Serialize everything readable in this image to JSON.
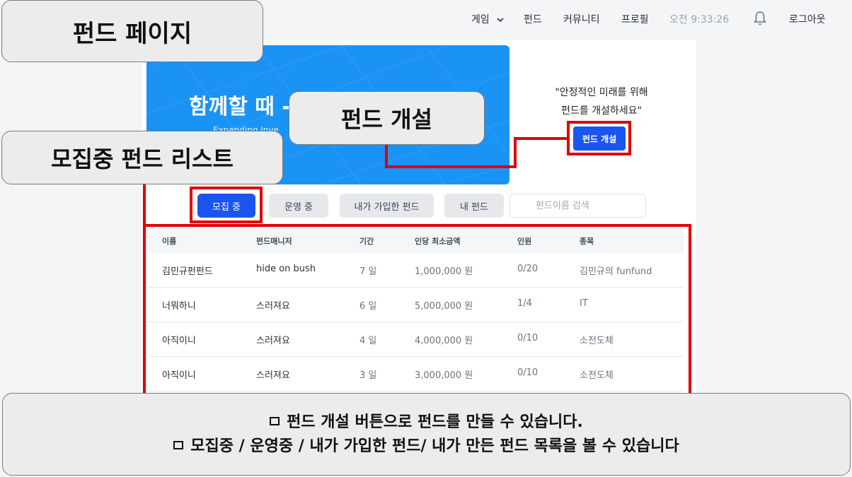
{
  "nav": {
    "game": "게임",
    "fund": "펀드",
    "community": "커뮤니티",
    "profile": "프로필",
    "time": "오전 9:33:26",
    "bell_icon": "bell-icon",
    "logout": "로그아웃"
  },
  "banner": {
    "title": "함께할 때 -",
    "subtitle": "Expanding Inve"
  },
  "cta": {
    "quote_line1": "\"안정적인 미래를 위해",
    "quote_line2": "펀드를 개설하세요\"",
    "open_button": "펀드 개설"
  },
  "tabs": [
    {
      "label": "모집 중"
    },
    {
      "label": "운영 중"
    },
    {
      "label": "내가 가입한 펀드"
    },
    {
      "label": "내 펀드"
    }
  ],
  "search": {
    "placeholder": "펀드이름 검색"
  },
  "table": {
    "headers": [
      "이름",
      "펀드매니저",
      "기간",
      "인당 최소금액",
      "인원",
      "종목"
    ],
    "rows": [
      [
        "김민규펀펀드",
        "hide on bush",
        "7 일",
        "1,000,000 원",
        "0/20",
        "김민규의 funfund"
      ],
      [
        "너뭐하니",
        "스러져요",
        "6 일",
        "5,000,000 원",
        "1/4",
        "IT"
      ],
      [
        "아직이니",
        "스러져요",
        "4 일",
        "4,000,000 원",
        "0/10",
        "소전도체"
      ],
      [
        "아직이니",
        "스러져요",
        "3 일",
        "3,000,000 원",
        "0/10",
        "소전도체"
      ]
    ]
  },
  "callouts": {
    "page": "펀드 페이지",
    "open": "펀드 개설",
    "list": "모집중 펀드 리스트",
    "bottom_line1": "펀드 개설 버튼으로 펀드를 만들 수 있습니다.",
    "bottom_line2": "모집중 / 운영중 / 내가 가입한 펀드/ 내가 만든 펀드 목록을 볼 수 있습니다"
  },
  "colors": {
    "primary": "#1956ef",
    "banner": "#1a93f5",
    "annotation": "#e00000"
  }
}
